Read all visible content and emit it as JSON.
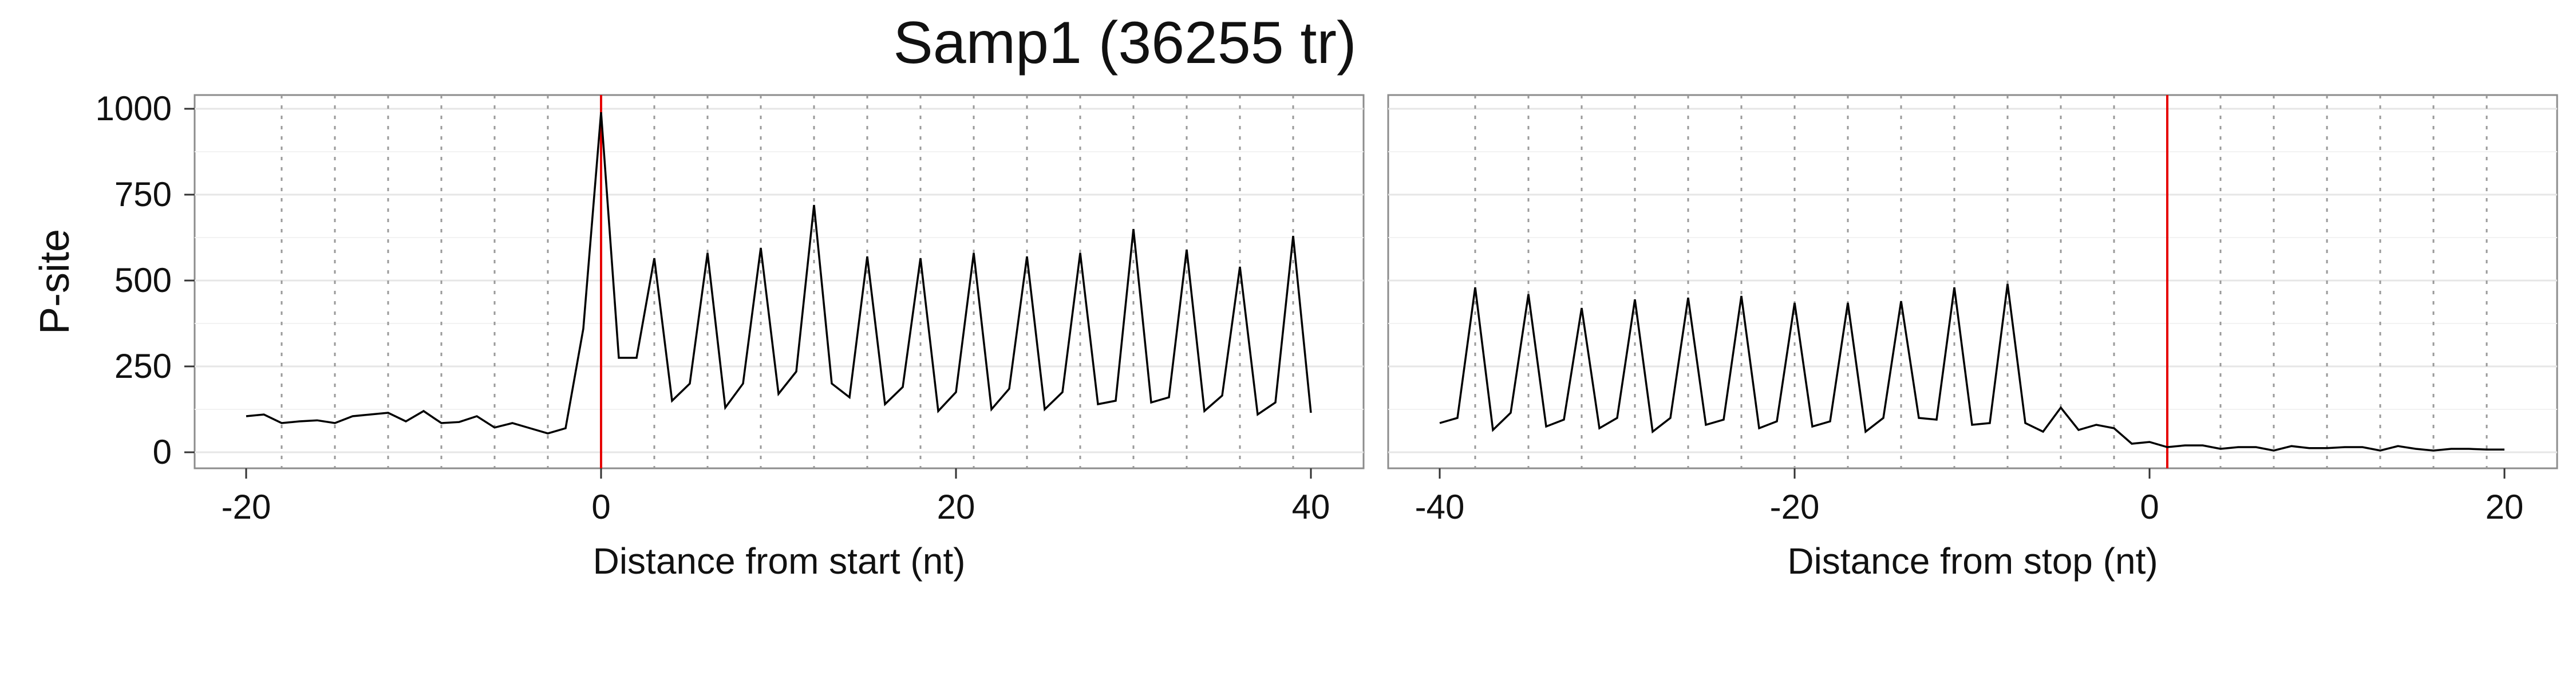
{
  "title": "Samp1 (36255 tr)",
  "ylabel": "P-site",
  "y_ticks": [
    "0",
    "250",
    "500",
    "750",
    "1000"
  ],
  "chart_data": [
    {
      "type": "line",
      "panel": "start",
      "xlabel": "Distance from start (nt)",
      "ylabel": "P-site",
      "xlim": [
        -20,
        40
      ],
      "ylim": [
        0,
        1000
      ],
      "x_ticks": [
        "-20",
        "0",
        "20",
        "40"
      ],
      "reference_line_x": 0,
      "frame_lines_x": [
        -18,
        -15,
        -12,
        -9,
        -6,
        -3,
        3,
        6,
        9,
        12,
        15,
        18,
        21,
        24,
        27,
        30,
        33,
        36,
        39
      ],
      "x": [
        -20,
        -19,
        -18,
        -17,
        -16,
        -15,
        -14,
        -13,
        -12,
        -11,
        -10,
        -9,
        -8,
        -7,
        -6,
        -5,
        -4,
        -3,
        -2,
        -1,
        0,
        1,
        2,
        3,
        4,
        5,
        6,
        7,
        8,
        9,
        10,
        11,
        12,
        13,
        14,
        15,
        16,
        17,
        18,
        19,
        20,
        21,
        22,
        23,
        24,
        25,
        26,
        27,
        28,
        29,
        30,
        31,
        32,
        33,
        34,
        35,
        36,
        37,
        38,
        39,
        40
      ],
      "y": [
        105,
        110,
        85,
        90,
        93,
        85,
        105,
        110,
        115,
        90,
        120,
        85,
        88,
        105,
        72,
        85,
        70,
        55,
        70,
        360,
        990,
        275,
        275,
        565,
        150,
        200,
        580,
        130,
        200,
        595,
        170,
        235,
        720,
        200,
        160,
        570,
        140,
        190,
        565,
        120,
        175,
        580,
        125,
        185,
        570,
        125,
        175,
        580,
        140,
        150,
        650,
        145,
        160,
        590,
        120,
        165,
        540,
        110,
        145,
        630,
        115
      ]
    },
    {
      "type": "line",
      "panel": "stop",
      "xlabel": "Distance from stop (nt)",
      "ylabel": "P-site",
      "xlim": [
        -40,
        20
      ],
      "ylim": [
        0,
        1000
      ],
      "x_ticks": [
        "-40",
        "-20",
        "0",
        "20"
      ],
      "reference_line_x": 1,
      "frame_lines_x": [
        -38,
        -35,
        -32,
        -29,
        -26,
        -23,
        -20,
        -17,
        -14,
        -11,
        -8,
        -5,
        -2,
        4,
        7,
        10,
        13,
        16,
        19
      ],
      "x": [
        -40,
        -39,
        -38,
        -37,
        -36,
        -35,
        -34,
        -33,
        -32,
        -31,
        -30,
        -29,
        -28,
        -27,
        -26,
        -25,
        -24,
        -23,
        -22,
        -21,
        -20,
        -19,
        -18,
        -17,
        -16,
        -15,
        -14,
        -13,
        -12,
        -11,
        -10,
        -9,
        -8,
        -7,
        -6,
        -5,
        -4,
        -3,
        -2,
        -1,
        0,
        1,
        2,
        3,
        4,
        5,
        6,
        7,
        8,
        9,
        10,
        11,
        12,
        13,
        14,
        15,
        16,
        17,
        18,
        19,
        20
      ],
      "y": [
        85,
        100,
        480,
        65,
        115,
        460,
        75,
        95,
        420,
        70,
        100,
        445,
        60,
        100,
        450,
        80,
        95,
        455,
        70,
        90,
        435,
        75,
        90,
        435,
        60,
        100,
        440,
        100,
        95,
        480,
        80,
        85,
        490,
        85,
        60,
        130,
        65,
        80,
        70,
        25,
        30,
        15,
        20,
        20,
        10,
        15,
        15,
        5,
        18,
        12,
        12,
        15,
        15,
        5,
        18,
        10,
        5,
        10,
        10,
        8,
        8
      ]
    }
  ]
}
